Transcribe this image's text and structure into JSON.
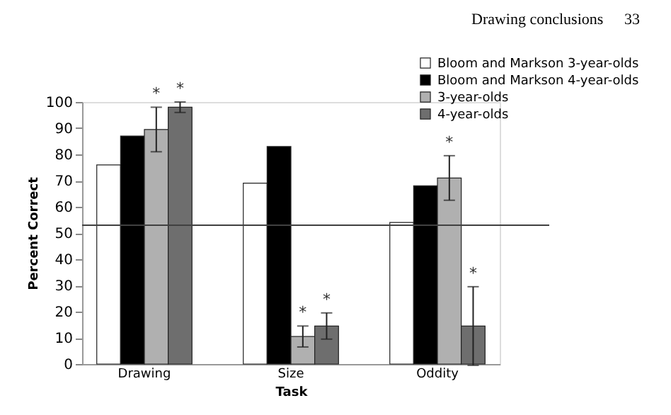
{
  "chart_data": {
    "type": "bar",
    "xlabel": "Task",
    "ylabel": "Percent Correct",
    "annotations": [
      "Drawing conclusions",
      "33"
    ],
    "categories": [
      "Drawing",
      "Size",
      "Oddity"
    ],
    "series": [
      {
        "name": "Bloom and Markson 3-year-olds",
        "color": "#ffffff",
        "values": [
          76,
          69,
          54
        ]
      },
      {
        "name": "Bloom and Markson 4-year-olds",
        "color": "#000000",
        "values": [
          87,
          83,
          68
        ]
      },
      {
        "name": "3-year-olds",
        "color": "#b0b0b0",
        "values": [
          89.5,
          10.5,
          71
        ],
        "errors": [
          8.5,
          4,
          8.5
        ],
        "value_labels": [
          "*",
          "*",
          "*"
        ]
      },
      {
        "name": "4-year-olds",
        "color": "#6e6e6e",
        "values": [
          98,
          14.5,
          14.5
        ],
        "errors": [
          2,
          5,
          15
        ],
        "value_labels": [
          "*",
          "*",
          "*"
        ]
      }
    ],
    "ylim": [
      0,
      100
    ],
    "yticks": [
      0,
      10,
      20,
      30,
      40,
      50,
      60,
      70,
      80,
      90,
      100
    ],
    "ref_lines": [
      {
        "axis": "y",
        "value": 53,
        "color": "#404040"
      }
    ],
    "grid": false,
    "legend": "top right"
  }
}
